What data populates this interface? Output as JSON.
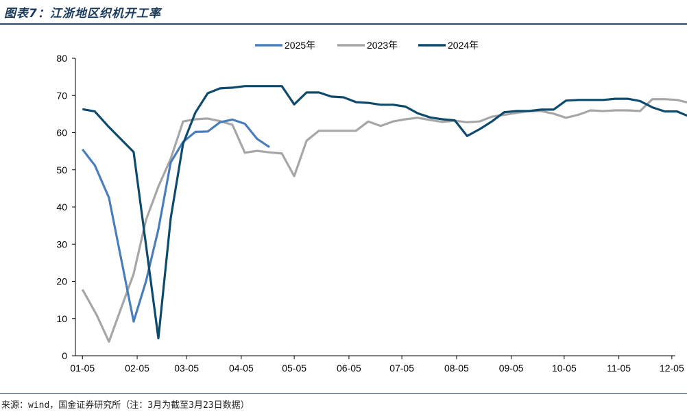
{
  "header": {
    "title": "图表7：江浙地区织机开工率"
  },
  "footer": {
    "source": "来源：wind，国金证券研究所（注：3月为截至3月23日数据）"
  },
  "colors": {
    "s2025": "#4a7ebb",
    "s2023": "#a6a6a6",
    "s2024": "#0d4a6b",
    "axis": "#000000"
  },
  "chart_data": {
    "type": "line",
    "title": "江浙地区织机开工率",
    "ylim": [
      0,
      80
    ],
    "yticks": [
      0,
      10,
      20,
      30,
      40,
      50,
      60,
      70,
      80
    ],
    "xlim": [
      1,
      341
    ],
    "xticks": [
      {
        "label": "01-05",
        "day": 5
      },
      {
        "label": "02-05",
        "day": 36
      },
      {
        "label": "03-05",
        "day": 64
      },
      {
        "label": "04-05",
        "day": 95
      },
      {
        "label": "05-05",
        "day": 125
      },
      {
        "label": "06-05",
        "day": 156
      },
      {
        "label": "07-05",
        "day": 186
      },
      {
        "label": "08-05",
        "day": 217
      },
      {
        "label": "09-05",
        "day": 248
      },
      {
        "label": "10-05",
        "day": 278
      },
      {
        "label": "11-05",
        "day": 309
      },
      {
        "label": "12-05",
        "day": 339
      }
    ],
    "legend_position": "top",
    "series": [
      {
        "name": "2025年",
        "color": "#4a7ebb",
        "points": [
          [
            5,
            55.5
          ],
          [
            12,
            51.2
          ],
          [
            20,
            42.5
          ],
          [
            34,
            9.2
          ],
          [
            41,
            20
          ],
          [
            48,
            34
          ],
          [
            55,
            52
          ],
          [
            62,
            57.5
          ],
          [
            69,
            60.2
          ],
          [
            76,
            60.3
          ],
          [
            83,
            62.8
          ],
          [
            90,
            63.5
          ],
          [
            97,
            62.4
          ],
          [
            104,
            58.3
          ],
          [
            111,
            56.1
          ]
        ]
      },
      {
        "name": "2023年",
        "color": "#a6a6a6",
        "points": [
          [
            5,
            17.8
          ],
          [
            13,
            11
          ],
          [
            20,
            3.8
          ],
          [
            34,
            22
          ],
          [
            41,
            36.5
          ],
          [
            48,
            45.5
          ],
          [
            55,
            53
          ],
          [
            62,
            63
          ],
          [
            69,
            63.6
          ],
          [
            76,
            63.8
          ],
          [
            83,
            63.1
          ],
          [
            90,
            62.1
          ],
          [
            97,
            54.6
          ],
          [
            104,
            55.1
          ],
          [
            111,
            54.7
          ],
          [
            118,
            54.4
          ],
          [
            125,
            48.3
          ],
          [
            132,
            57.8
          ],
          [
            139,
            60.5
          ],
          [
            146,
            60.5
          ],
          [
            153,
            60.5
          ],
          [
            160,
            60.5
          ],
          [
            167,
            63
          ],
          [
            174,
            61.8
          ],
          [
            181,
            63
          ],
          [
            188,
            63.6
          ],
          [
            195,
            64
          ],
          [
            202,
            63.4
          ],
          [
            209,
            62.9
          ],
          [
            216,
            63.2
          ],
          [
            223,
            62.8
          ],
          [
            230,
            63
          ],
          [
            237,
            64.3
          ],
          [
            244,
            64.8
          ],
          [
            251,
            65.3
          ],
          [
            258,
            65.8
          ],
          [
            265,
            65.8
          ],
          [
            272,
            65.1
          ],
          [
            279,
            64
          ],
          [
            286,
            64.8
          ],
          [
            293,
            66
          ],
          [
            300,
            65.8
          ],
          [
            307,
            66
          ],
          [
            314,
            66
          ],
          [
            321,
            65.8
          ],
          [
            328,
            69
          ],
          [
            335,
            69
          ],
          [
            342,
            68.8
          ],
          [
            349,
            68
          ],
          [
            356,
            67.6
          ]
        ]
      },
      {
        "name": "2024年",
        "color": "#0d4a6b",
        "points": [
          [
            5,
            66.3
          ],
          [
            12,
            65.7
          ],
          [
            20,
            61.5
          ],
          [
            34,
            54.8
          ],
          [
            48,
            4.7
          ],
          [
            55,
            37
          ],
          [
            62,
            57
          ],
          [
            69,
            65.4
          ],
          [
            76,
            70.6
          ],
          [
            83,
            71.9
          ],
          [
            90,
            72.1
          ],
          [
            97,
            72.5
          ],
          [
            104,
            72.5
          ],
          [
            111,
            72.5
          ],
          [
            118,
            72.5
          ],
          [
            125,
            67.6
          ],
          [
            132,
            70.8
          ],
          [
            139,
            70.8
          ],
          [
            146,
            69.7
          ],
          [
            153,
            69.5
          ],
          [
            160,
            68.2
          ],
          [
            167,
            68
          ],
          [
            174,
            67.5
          ],
          [
            181,
            67.5
          ],
          [
            188,
            67
          ],
          [
            195,
            65.2
          ],
          [
            202,
            64.1
          ],
          [
            209,
            63.6
          ],
          [
            216,
            63.3
          ],
          [
            223,
            59.1
          ],
          [
            230,
            60.9
          ],
          [
            237,
            63
          ],
          [
            244,
            65.5
          ],
          [
            251,
            65.8
          ],
          [
            258,
            65.8
          ],
          [
            265,
            66.2
          ],
          [
            272,
            66.2
          ],
          [
            279,
            68.6
          ],
          [
            286,
            68.8
          ],
          [
            293,
            68.8
          ],
          [
            300,
            68.8
          ],
          [
            307,
            69.1
          ],
          [
            314,
            69.1
          ],
          [
            321,
            68.5
          ],
          [
            328,
            66.8
          ],
          [
            335,
            65.7
          ],
          [
            342,
            65.7
          ],
          [
            349,
            64.3
          ],
          [
            356,
            62.7
          ]
        ]
      }
    ]
  }
}
